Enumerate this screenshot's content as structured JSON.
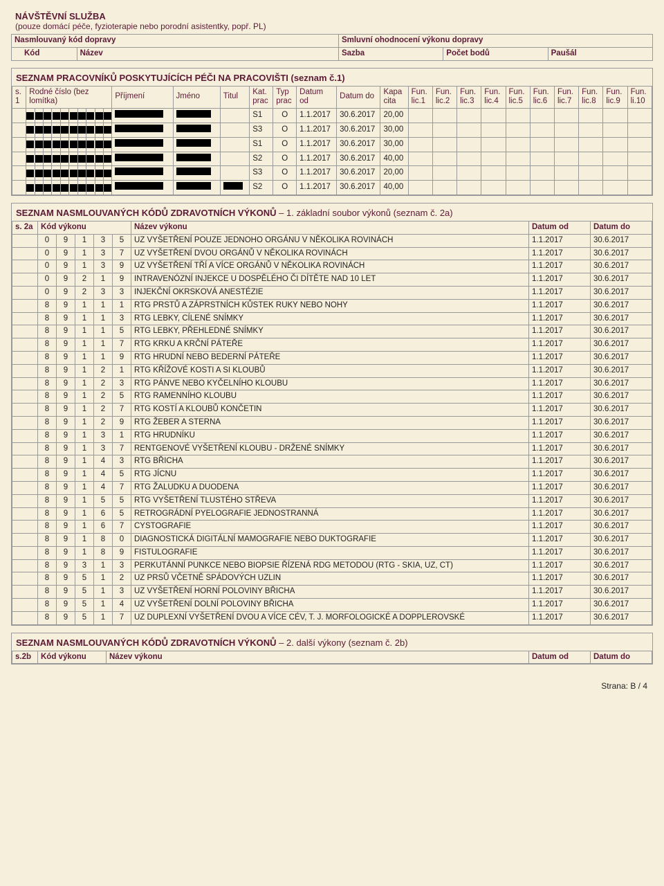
{
  "colors": {
    "bg": "#f5efdb",
    "border": "#999999",
    "heading": "#5c1a36",
    "text": "#222222",
    "redact": "#000000"
  },
  "top": {
    "title": "NÁVŠTĚVNÍ SLUŽBA",
    "subtitle": "(pouze domácí péče, fyzioterapie nebo porodní asistentky, popř. PL)",
    "row1_left": "Nasmlouvaný kód dopravy",
    "row1_right": "Smluvní ohodnocení výkonu dopravy",
    "row2_kod": "Kód",
    "row2_nazev": "Název",
    "row2_sazba": "Sazba",
    "row2_pocet": "Počet bodů",
    "row2_pausal": "Paušál"
  },
  "workers": {
    "title": "SEZNAM PRACOVNÍKŮ POSKYTUJÍCÍCH PÉČI NA PRACOVIŠTI (seznam č.1)",
    "headers": {
      "s1": "s. 1",
      "rodne": "Rodné číslo (bez lomítka)",
      "prijmeni": "Příjmení",
      "jmeno": "Jméno",
      "titul": "Titul",
      "kat": "Kat. prac",
      "typ": "Typ prac",
      "od": "Datum od",
      "do": "Datum do",
      "kapa": "Kapa cita",
      "f1": "Fun. lic.1",
      "f2": "Fun. lic.2",
      "f3": "Fun. lic.3",
      "f4": "Fun. lic.4",
      "f5": "Fun. lic.5",
      "f6": "Fun. lic.6",
      "f7": "Fun. lic.7",
      "f8": "Fun. lic.8",
      "f9": "Fun. lic.9",
      "f10": "Fun. li.10"
    },
    "rows": [
      {
        "kat": "S1",
        "typ": "O",
        "od": "1.1.2017",
        "do": "30.6.2017",
        "kapa": "20,00",
        "titul": false
      },
      {
        "kat": "S3",
        "typ": "O",
        "od": "1.1.2017",
        "do": "30.6.2017",
        "kapa": "30,00",
        "titul": false
      },
      {
        "kat": "S1",
        "typ": "O",
        "od": "1.1.2017",
        "do": "30.6.2017",
        "kapa": "30,00",
        "titul": false
      },
      {
        "kat": "S2",
        "typ": "O",
        "od": "1.1.2017",
        "do": "30.6.2017",
        "kapa": "40,00",
        "titul": false
      },
      {
        "kat": "S3",
        "typ": "O",
        "od": "1.1.2017",
        "do": "30.6.2017",
        "kapa": "20,00",
        "titul": false
      },
      {
        "kat": "S2",
        "typ": "O",
        "od": "1.1.2017",
        "do": "30.6.2017",
        "kapa": "40,00",
        "titul": true
      }
    ]
  },
  "codes1": {
    "title_bold": "SEZNAM NASMLOUVANÝCH KÓDŮ ZDRAVOTNÍCH VÝKONŮ",
    "title_rest": " – 1. základní soubor výkonů (seznam č. 2a)",
    "headers": {
      "s2a": "s. 2a",
      "kod": "Kód výkonu",
      "nazev": "Název výkonu",
      "od": "Datum od",
      "do": "Datum do"
    },
    "rows": [
      {
        "c": [
          "0",
          "9",
          "1",
          "3",
          "5"
        ],
        "n": "UZ VYŠETŘENÍ POUZE JEDNOHO ORGÁNU V NĚKOLIKA ROVINÁCH",
        "od": "1.1.2017",
        "do": "30.6.2017"
      },
      {
        "c": [
          "0",
          "9",
          "1",
          "3",
          "7"
        ],
        "n": "UZ VYŠETŘENÍ DVOU ORGÁNŮ V NĚKOLIKA ROVINÁCH",
        "od": "1.1.2017",
        "do": "30.6.2017"
      },
      {
        "c": [
          "0",
          "9",
          "1",
          "3",
          "9"
        ],
        "n": "UZ VYŠETŘENÍ TŘÍ A VÍCE ORGÁNŮ V NĚKOLIKA ROVINÁCH",
        "od": "1.1.2017",
        "do": "30.6.2017"
      },
      {
        "c": [
          "0",
          "9",
          "2",
          "1",
          "9"
        ],
        "n": "INTRAVENÓZNÍ INJEKCE U DOSPĚLÉHO ČI DÍTĚTE NAD 10 LET",
        "od": "1.1.2017",
        "do": "30.6.2017"
      },
      {
        "c": [
          "0",
          "9",
          "2",
          "3",
          "3"
        ],
        "n": "INJEKČNÍ OKRSKOVÁ ANESTÉZIE",
        "od": "1.1.2017",
        "do": "30.6.2017"
      },
      {
        "c": [
          "8",
          "9",
          "1",
          "1",
          "1"
        ],
        "n": "RTG PRSTŮ A ZÁPRSTNÍCH KŮSTEK RUKY NEBO NOHY",
        "od": "1.1.2017",
        "do": "30.6.2017"
      },
      {
        "c": [
          "8",
          "9",
          "1",
          "1",
          "3"
        ],
        "n": "RTG LEBKY, CÍLENÉ SNÍMKY",
        "od": "1.1.2017",
        "do": "30.6.2017"
      },
      {
        "c": [
          "8",
          "9",
          "1",
          "1",
          "5"
        ],
        "n": "RTG LEBKY, PŘEHLEDNÉ SNÍMKY",
        "od": "1.1.2017",
        "do": "30.6.2017"
      },
      {
        "c": [
          "8",
          "9",
          "1",
          "1",
          "7"
        ],
        "n": "RTG KRKU A KRČNÍ PÁTEŘE",
        "od": "1.1.2017",
        "do": "30.6.2017"
      },
      {
        "c": [
          "8",
          "9",
          "1",
          "1",
          "9"
        ],
        "n": "RTG HRUDNÍ NEBO BEDERNÍ PÁTEŘE",
        "od": "1.1.2017",
        "do": "30.6.2017"
      },
      {
        "c": [
          "8",
          "9",
          "1",
          "2",
          "1"
        ],
        "n": "RTG KŘÍŽOVÉ KOSTI A SI KLOUBŮ",
        "od": "1.1.2017",
        "do": "30.6.2017"
      },
      {
        "c": [
          "8",
          "9",
          "1",
          "2",
          "3"
        ],
        "n": "RTG PÁNVE NEBO KYČELNÍHO KLOUBU",
        "od": "1.1.2017",
        "do": "30.6.2017"
      },
      {
        "c": [
          "8",
          "9",
          "1",
          "2",
          "5"
        ],
        "n": "RTG RAMENNÍHO KLOUBU",
        "od": "1.1.2017",
        "do": "30.6.2017"
      },
      {
        "c": [
          "8",
          "9",
          "1",
          "2",
          "7"
        ],
        "n": "RTG KOSTÍ A KLOUBŮ KONČETIN",
        "od": "1.1.2017",
        "do": "30.6.2017"
      },
      {
        "c": [
          "8",
          "9",
          "1",
          "2",
          "9"
        ],
        "n": "RTG ŽEBER A STERNA",
        "od": "1.1.2017",
        "do": "30.6.2017"
      },
      {
        "c": [
          "8",
          "9",
          "1",
          "3",
          "1"
        ],
        "n": "RTG HRUDNÍKU",
        "od": "1.1.2017",
        "do": "30.6.2017"
      },
      {
        "c": [
          "8",
          "9",
          "1",
          "3",
          "7"
        ],
        "n": "RENTGENOVÉ VYŠETŘENÍ KLOUBU - DRŽENÉ SNÍMKY",
        "od": "1.1.2017",
        "do": "30.6.2017"
      },
      {
        "c": [
          "8",
          "9",
          "1",
          "4",
          "3"
        ],
        "n": "RTG BŘICHA",
        "od": "1.1.2017",
        "do": "30.6.2017"
      },
      {
        "c": [
          "8",
          "9",
          "1",
          "4",
          "5"
        ],
        "n": "RTG JÍCNU",
        "od": "1.1.2017",
        "do": "30.6.2017"
      },
      {
        "c": [
          "8",
          "9",
          "1",
          "4",
          "7"
        ],
        "n": "RTG ŽALUDKU A DUODENA",
        "od": "1.1.2017",
        "do": "30.6.2017"
      },
      {
        "c": [
          "8",
          "9",
          "1",
          "5",
          "5"
        ],
        "n": "RTG VYŠETŘENÍ TLUSTÉHO STŘEVA",
        "od": "1.1.2017",
        "do": "30.6.2017"
      },
      {
        "c": [
          "8",
          "9",
          "1",
          "6",
          "5"
        ],
        "n": "RETROGRÁDNÍ PYELOGRAFIE JEDNOSTRANNÁ",
        "od": "1.1.2017",
        "do": "30.6.2017"
      },
      {
        "c": [
          "8",
          "9",
          "1",
          "6",
          "7"
        ],
        "n": "CYSTOGRAFIE",
        "od": "1.1.2017",
        "do": "30.6.2017"
      },
      {
        "c": [
          "8",
          "9",
          "1",
          "8",
          "0"
        ],
        "n": "DIAGNOSTICKÁ DIGITÁLNÍ MAMOGRAFIE NEBO DUKTOGRAFIE",
        "od": "1.1.2017",
        "do": "30.6.2017"
      },
      {
        "c": [
          "8",
          "9",
          "1",
          "8",
          "9"
        ],
        "n": "FISTULOGRAFIE",
        "od": "1.1.2017",
        "do": "30.6.2017"
      },
      {
        "c": [
          "8",
          "9",
          "3",
          "1",
          "3"
        ],
        "n": "PERKUTÁNNÍ PUNKCE NEBO BIOPSIE ŘÍZENÁ RDG METODOU (RTG - SKIA, UZ, CT)",
        "od": "1.1.2017",
        "do": "30.6.2017"
      },
      {
        "c": [
          "8",
          "9",
          "5",
          "1",
          "2"
        ],
        "n": "UZ PRSŮ VČETNĚ SPÁDOVÝCH UZLIN",
        "od": "1.1.2017",
        "do": "30.6.2017"
      },
      {
        "c": [
          "8",
          "9",
          "5",
          "1",
          "3"
        ],
        "n": "UZ VYŠETŘENÍ HORNÍ POLOVINY BŘICHA",
        "od": "1.1.2017",
        "do": "30.6.2017"
      },
      {
        "c": [
          "8",
          "9",
          "5",
          "1",
          "4"
        ],
        "n": "UZ VYŠETŘENÍ DOLNÍ POLOVINY BŘICHA",
        "od": "1.1.2017",
        "do": "30.6.2017"
      },
      {
        "c": [
          "8",
          "9",
          "5",
          "1",
          "7"
        ],
        "n": "UZ DUPLEXNÍ VYŠETŘENÍ DVOU A VÍCE CÉV, T. J. MORFOLOGICKÉ A DOPPLEROVSKÉ",
        "od": "1.1.2017",
        "do": "30.6.2017"
      }
    ]
  },
  "codes2": {
    "title_bold": "SEZNAM NASMLOUVANÝCH KÓDŮ ZDRAVOTNÍCH VÝKONŮ",
    "title_rest": " – 2. další výkony (seznam č. 2b)",
    "headers": {
      "s2b": "s.2b",
      "kod": "Kód výkonu",
      "nazev": "Název výkonu",
      "od": "Datum od",
      "do": "Datum do"
    }
  },
  "footer": "Strana: B / 4"
}
